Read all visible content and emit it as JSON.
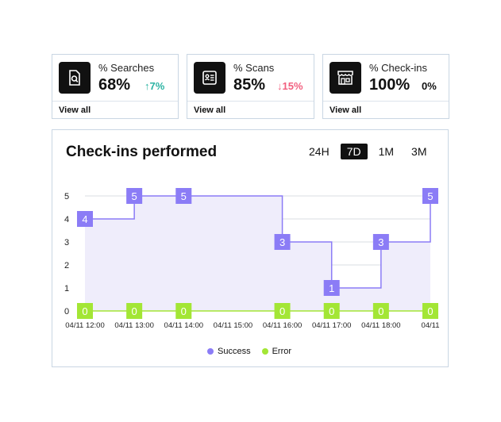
{
  "cards": [
    {
      "label": "% Searches",
      "value": "68%",
      "delta": "7%",
      "direction": "up",
      "arrow": "↑",
      "icon": "search-document-icon",
      "view_all": "View all"
    },
    {
      "label": "% Scans",
      "value": "85%",
      "delta": "15%",
      "direction": "down",
      "arrow": "↓",
      "icon": "id-card-icon",
      "view_all": "View all"
    },
    {
      "label": "% Check-ins",
      "value": "100%",
      "delta": "0%",
      "direction": "flat",
      "arrow": "",
      "icon": "storefront-icon",
      "view_all": "View all"
    }
  ],
  "chart": {
    "title": "Check-ins performed",
    "ranges": [
      "24H",
      "7D",
      "1M",
      "3M"
    ],
    "active_range": "7D",
    "legend": {
      "success": "Success",
      "error": "Error"
    }
  },
  "colors": {
    "success": "#8b7cf6",
    "success_fill": "#efedfb",
    "error": "#a3e635",
    "grid": "#d9dde3",
    "up": "#2bb3a3",
    "down": "#f2607f"
  },
  "chart_data": {
    "type": "line",
    "title": "Check-ins performed",
    "x": [
      "04/11 12:00",
      "04/11 13:00",
      "04/11 14:00",
      "04/11 15:00",
      "04/11 16:00",
      "04/11 17:00",
      "04/11 18:00",
      "04/11"
    ],
    "ylim": [
      0,
      5
    ],
    "yticks": [
      0,
      1,
      2,
      3,
      4,
      5
    ],
    "grid": true,
    "legend_position": "bottom-center",
    "series": [
      {
        "name": "Success",
        "step": true,
        "points": [
          {
            "x": "04/11 12:00",
            "y": 4
          },
          {
            "x": "04/11 13:00",
            "y": 5
          },
          {
            "x": "04/11 14:00",
            "y": 5
          },
          {
            "x": "04/11 16:00",
            "y": 3
          },
          {
            "x": "04/11 17:00",
            "y": 1
          },
          {
            "x": "04/11 18:00",
            "y": 3
          },
          {
            "x": "04/11",
            "y": 5
          }
        ]
      },
      {
        "name": "Error",
        "step": true,
        "points": [
          {
            "x": "04/11 12:00",
            "y": 0
          },
          {
            "x": "04/11 13:00",
            "y": 0
          },
          {
            "x": "04/11 14:00",
            "y": 0
          },
          {
            "x": "04/11 16:00",
            "y": 0
          },
          {
            "x": "04/11 17:00",
            "y": 0
          },
          {
            "x": "04/11 18:00",
            "y": 0
          },
          {
            "x": "04/11",
            "y": 0
          }
        ]
      }
    ]
  }
}
